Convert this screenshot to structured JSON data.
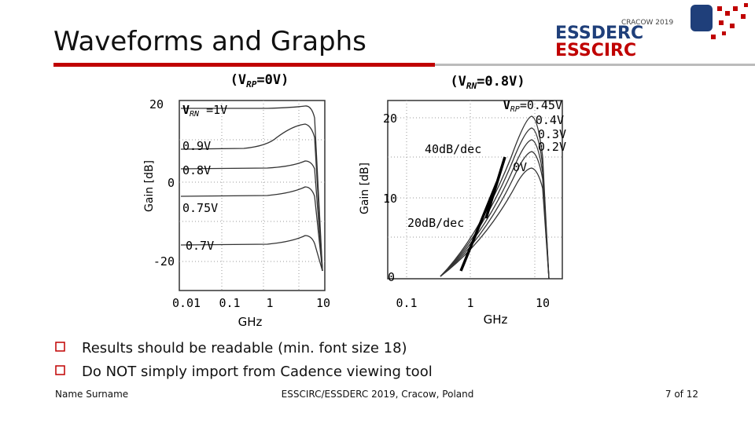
{
  "header": {
    "title": "Waveforms and Graphs",
    "logo": {
      "top": "CRACOW 2019",
      "line1": "ESSDERC",
      "line2": "ESSCIRC"
    }
  },
  "left_graph": {
    "title": {
      "open": "(",
      "var": "V",
      "sub": "RP",
      "rest": "=0V)"
    },
    "y_label": "Gain [dB]",
    "y_ticks": [
      "20",
      "0",
      "-20"
    ],
    "x_ticks": [
      "0.01",
      "0.1",
      "1",
      "10"
    ],
    "x_unit": "GHz",
    "curve_labels": [
      {
        "var": "V",
        "sub": "RN",
        "rest": " =1V"
      },
      {
        "rest": "0.9V"
      },
      {
        "rest": "0.8V"
      },
      {
        "rest": "0.75V"
      },
      {
        "rest": "0.7V"
      }
    ]
  },
  "right_graph": {
    "title": {
      "open": "(",
      "var": "V",
      "sub": "RN",
      "rest": "=0.8V)"
    },
    "y_label": "Gain [dB]",
    "y_ticks": [
      "20",
      "10",
      "0"
    ],
    "x_ticks": [
      "0.1",
      "1",
      "10"
    ],
    "x_unit": "GHz",
    "curve_labels": [
      {
        "var": "V",
        "sub": "RP",
        "rest": "=0.45V"
      },
      {
        "rest": "0.4V"
      },
      {
        "rest": "0.3V"
      },
      {
        "rest": "0.2V"
      },
      {
        "rest": "0V"
      }
    ],
    "annotations": [
      "40dB/dec",
      "20dB/dec"
    ]
  },
  "bullets": [
    "Results should be readable (min. font size 18)",
    "Do NOT simply import from Cadence viewing tool"
  ],
  "footer": {
    "author": "Name Surname",
    "event": "ESSCIRC/ESSDERC 2019, Cracow, Poland",
    "page": "7 of 12"
  }
}
